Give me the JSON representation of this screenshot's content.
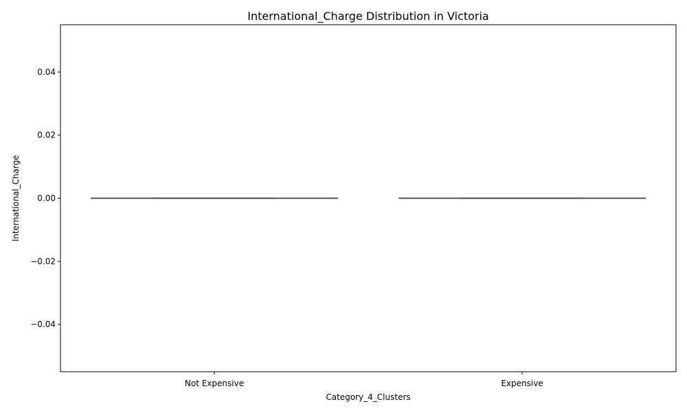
{
  "chart_data": {
    "type": "box",
    "title": "International_Charge Distribution in Victoria",
    "xlabel": "Category_4_Clusters",
    "ylabel": "International_Charge",
    "categories": [
      "Not Expensive",
      "Expensive"
    ],
    "boxes": [
      {
        "category": "Not Expensive",
        "min": 0,
        "q1": 0,
        "median": 0,
        "q3": 0,
        "max": 0
      },
      {
        "category": "Expensive",
        "min": 0,
        "q1": 0,
        "median": 0,
        "q3": 0,
        "max": 0
      }
    ],
    "ylim": [
      -0.055,
      0.055
    ],
    "yticks": [
      -0.04,
      -0.02,
      0.0,
      0.02,
      0.04
    ],
    "ytick_labels": [
      "−0.04",
      "−0.02",
      "0.00",
      "0.02",
      "0.04"
    ],
    "grid": false,
    "colors": {
      "box_line": "#3f3f3f",
      "axis": "#000000",
      "background": "#ffffff"
    }
  }
}
